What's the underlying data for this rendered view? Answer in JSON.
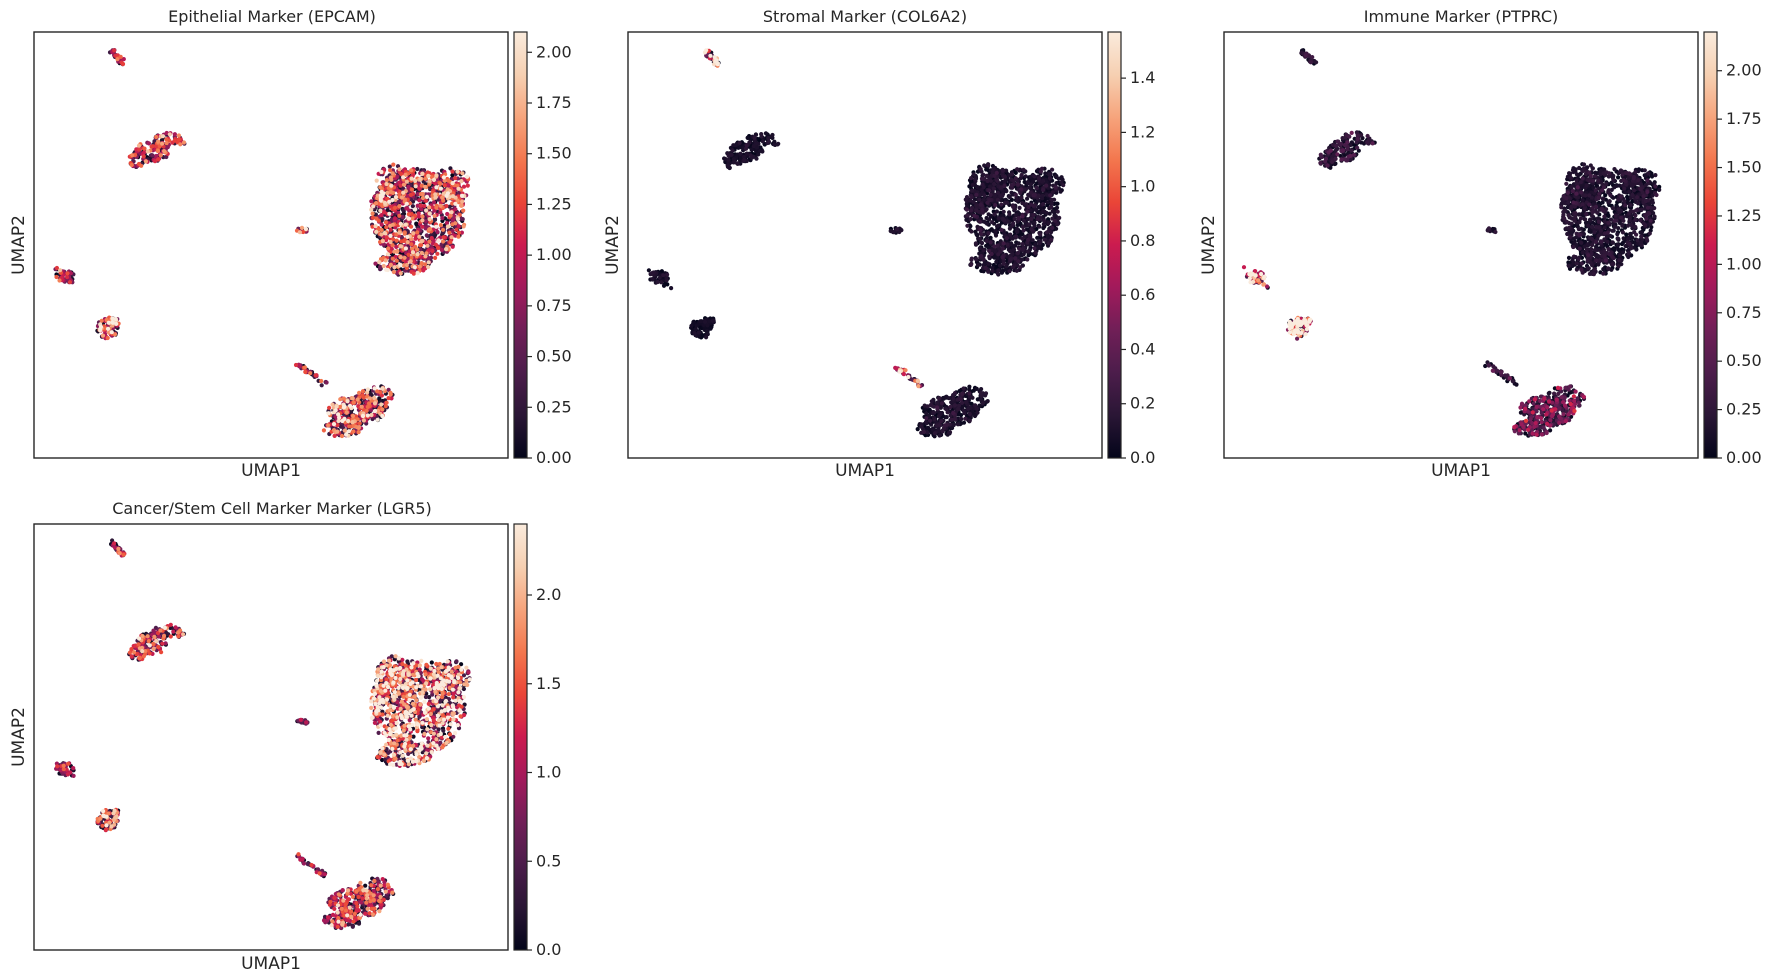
{
  "figure": {
    "layout": "2 rows x 3 columns (4 panels used)"
  },
  "colormap": {
    "name": "rocket",
    "stops": [
      "#03051a",
      "#2a1635",
      "#4c1d4b",
      "#701f57",
      "#a11a5b",
      "#cb1b4f",
      "#ea4537",
      "#f3774e",
      "#f6a47c",
      "#f6d0b2",
      "#faebdd"
    ]
  },
  "chart_data": [
    {
      "type": "scatter",
      "title": "Epithelial Marker (EPCAM)",
      "xlabel": "UMAP1",
      "ylabel": "UMAP2",
      "x_ticks_shown": false,
      "y_ticks_shown": false,
      "grid": false,
      "colorbar": {
        "min": 0.0,
        "max": 2.1,
        "ticks": [
          0.0,
          0.25,
          0.5,
          0.75,
          1.0,
          1.25,
          1.5,
          1.75,
          2.0
        ],
        "tick_labels": [
          "0.00",
          "0.25",
          "0.50",
          "0.75",
          "1.00",
          "1.25",
          "1.50",
          "1.75",
          "2.00"
        ]
      },
      "cluster_mean_expression": {
        "C0": 1.05,
        "C1": 0.95,
        "C2": 0.85,
        "C3": 0.65,
        "C4": 1.35,
        "C5": 1.1,
        "C6": 0.8,
        "C7": 1.2
      }
    },
    {
      "type": "scatter",
      "title": "Stromal Marker (COL6A2)",
      "xlabel": "UMAP1",
      "ylabel": "UMAP2",
      "x_ticks_shown": false,
      "y_ticks_shown": false,
      "grid": false,
      "colorbar": {
        "min": 0.0,
        "max": 1.57,
        "ticks": [
          0.0,
          0.2,
          0.4,
          0.6,
          0.8,
          1.0,
          1.2,
          1.4
        ],
        "tick_labels": [
          "0.0",
          "0.2",
          "0.4",
          "0.6",
          "0.8",
          "1.0",
          "1.2",
          "1.4"
        ]
      },
      "cluster_mean_expression": {
        "C0": 0.1,
        "C1": 0.08,
        "C2": 1.15,
        "C3": 0.08,
        "C4": 0.05,
        "C5": 0.08,
        "C6": 0.9,
        "C7": 0.1
      }
    },
    {
      "type": "scatter",
      "title": "Immune Marker (PTPRC)",
      "xlabel": "UMAP1",
      "ylabel": "UMAP2",
      "x_ticks_shown": false,
      "y_ticks_shown": false,
      "grid": false,
      "colorbar": {
        "min": 0.0,
        "max": 2.2,
        "ticks": [
          0.0,
          0.25,
          0.5,
          0.75,
          1.0,
          1.25,
          1.5,
          1.75,
          2.0
        ],
        "tick_labels": [
          "0.00",
          "0.25",
          "0.50",
          "0.75",
          "1.00",
          "1.25",
          "1.50",
          "1.75",
          "2.00"
        ]
      },
      "cluster_mean_expression": {
        "C0": 0.15,
        "C1": 0.25,
        "C2": 0.2,
        "C3": 1.45,
        "C4": 1.9,
        "C5": 0.15,
        "C6": 0.3,
        "C7": 0.5
      }
    },
    {
      "type": "scatter",
      "title": "Cancer/Stem Cell Marker Marker (LGR5)",
      "xlabel": "UMAP1",
      "ylabel": "UMAP2",
      "x_ticks_shown": false,
      "y_ticks_shown": false,
      "grid": false,
      "colorbar": {
        "min": 0.0,
        "max": 2.4,
        "ticks": [
          0.0,
          0.5,
          1.0,
          1.5,
          2.0
        ],
        "tick_labels": [
          "0.0",
          "0.5",
          "1.0",
          "1.5",
          "2.0"
        ]
      },
      "cluster_mean_expression": {
        "C0": 1.5,
        "C1": 1.1,
        "C2": 0.9,
        "C3": 0.8,
        "C4": 1.3,
        "C5": 0.9,
        "C6": 0.7,
        "C7": 1.0
      }
    }
  ]
}
